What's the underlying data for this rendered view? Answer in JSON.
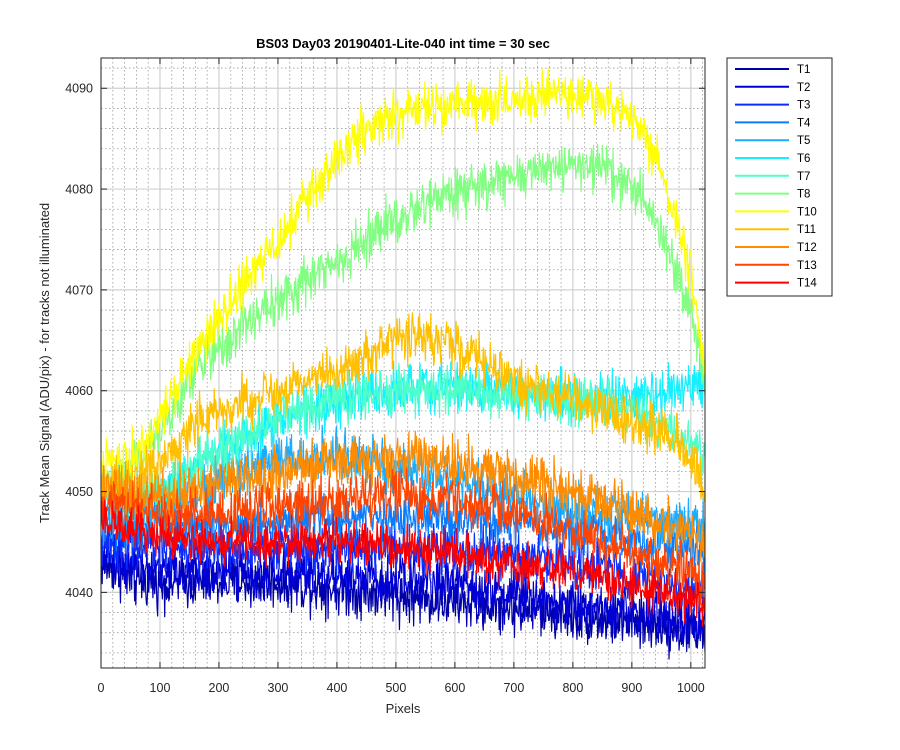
{
  "chart_data": {
    "type": "line",
    "title": "BS03 Day03 20190401-Lite-040 int time = 30 sec",
    "xlabel": "Pixels",
    "ylabel": "Track Mean Signal (ADU/pix) - for tracks not illuminated",
    "xlim": [
      0,
      1024
    ],
    "ylim": [
      4032.5,
      4093
    ],
    "xticks": [
      "0",
      "100",
      "200",
      "300",
      "400",
      "500",
      "600",
      "700",
      "800",
      "900",
      "1000"
    ],
    "yticks": [
      "4040",
      "4050",
      "4060",
      "4070",
      "4080",
      "4090"
    ],
    "grid": "major and minor",
    "legend_position": "outside-top-right",
    "series": [
      {
        "name": "T1",
        "color": "#0000a8",
        "noise": 1.8,
        "points": [
          [
            0,
            4043
          ],
          [
            60,
            4041
          ],
          [
            150,
            4041
          ],
          [
            300,
            4041
          ],
          [
            450,
            4040
          ],
          [
            600,
            4039
          ],
          [
            750,
            4038
          ],
          [
            900,
            4037
          ],
          [
            1024,
            4036
          ]
        ]
      },
      {
        "name": "T2",
        "color": "#0000d6",
        "noise": 1.8,
        "points": [
          [
            0,
            4044
          ],
          [
            60,
            4042.5
          ],
          [
            150,
            4042
          ],
          [
            300,
            4042
          ],
          [
            450,
            4041.5
          ],
          [
            600,
            4041
          ],
          [
            750,
            4039.5
          ],
          [
            900,
            4038
          ],
          [
            1024,
            4037
          ]
        ]
      },
      {
        "name": "T3",
        "color": "#0a2eff",
        "noise": 1.7,
        "points": [
          [
            0,
            4045
          ],
          [
            100,
            4044.5
          ],
          [
            300,
            4044.5
          ],
          [
            500,
            4044.5
          ],
          [
            650,
            4044
          ],
          [
            800,
            4043
          ],
          [
            950,
            4041
          ],
          [
            1024,
            4040
          ]
        ]
      },
      {
        "name": "T4",
        "color": "#0a7cff",
        "noise": 1.7,
        "points": [
          [
            0,
            4047
          ],
          [
            100,
            4046.5
          ],
          [
            300,
            4047
          ],
          [
            500,
            4047.5
          ],
          [
            650,
            4047
          ],
          [
            800,
            4046
          ],
          [
            950,
            4045
          ],
          [
            1024,
            4044
          ]
        ]
      },
      {
        "name": "T5",
        "color": "#1cacff",
        "noise": 1.8,
        "points": [
          [
            0,
            4047
          ],
          [
            80,
            4047.5
          ],
          [
            200,
            4051
          ],
          [
            300,
            4053
          ],
          [
            400,
            4053.5
          ],
          [
            500,
            4052
          ],
          [
            600,
            4051
          ],
          [
            700,
            4049.5
          ],
          [
            800,
            4048.5
          ],
          [
            900,
            4047.5
          ],
          [
            1024,
            4046.5
          ]
        ]
      },
      {
        "name": "T6",
        "color": "#14f0ff",
        "noise": 1.8,
        "points": [
          [
            0,
            4049
          ],
          [
            80,
            4049
          ],
          [
            200,
            4054
          ],
          [
            300,
            4057
          ],
          [
            400,
            4059
          ],
          [
            500,
            4060
          ],
          [
            600,
            4060.5
          ],
          [
            700,
            4060
          ],
          [
            800,
            4059.5
          ],
          [
            900,
            4059.5
          ],
          [
            1000,
            4060
          ],
          [
            1024,
            4061
          ]
        ]
      },
      {
        "name": "T7",
        "color": "#4dffc8",
        "noise": 1.6,
        "points": [
          [
            0,
            4049
          ],
          [
            100,
            4050
          ],
          [
            200,
            4054
          ],
          [
            300,
            4057.5
          ],
          [
            400,
            4059
          ],
          [
            500,
            4060
          ],
          [
            600,
            4060
          ],
          [
            700,
            4059.5
          ],
          [
            800,
            4059
          ],
          [
            900,
            4058
          ],
          [
            980,
            4056
          ],
          [
            1024,
            4053
          ]
        ]
      },
      {
        "name": "T8",
        "color": "#80ff80",
        "noise": 1.7,
        "points": [
          [
            0,
            4051
          ],
          [
            50,
            4052
          ],
          [
            100,
            4056
          ],
          [
            150,
            4061
          ],
          [
            200,
            4064.5
          ],
          [
            300,
            4069
          ],
          [
            400,
            4073
          ],
          [
            500,
            4077
          ],
          [
            550,
            4078.5
          ],
          [
            600,
            4079.5
          ],
          [
            700,
            4081
          ],
          [
            800,
            4082.5
          ],
          [
            850,
            4082
          ],
          [
            900,
            4080
          ],
          [
            950,
            4076
          ],
          [
            1000,
            4068
          ],
          [
            1024,
            4061
          ]
        ]
      },
      {
        "name": "T10",
        "color": "#ffff00",
        "noise": 1.7,
        "points": [
          [
            0,
            4053
          ],
          [
            50,
            4053.5
          ],
          [
            100,
            4057
          ],
          [
            150,
            4063
          ],
          [
            200,
            4067
          ],
          [
            250,
            4071
          ],
          [
            300,
            4075
          ],
          [
            350,
            4079
          ],
          [
            400,
            4083
          ],
          [
            450,
            4086
          ],
          [
            500,
            4087.5
          ],
          [
            600,
            4088.5
          ],
          [
            700,
            4089
          ],
          [
            800,
            4089.5
          ],
          [
            850,
            4089
          ],
          [
            900,
            4087
          ],
          [
            950,
            4082
          ],
          [
            1000,
            4072
          ],
          [
            1024,
            4062
          ]
        ]
      },
      {
        "name": "T11",
        "color": "#ffc000",
        "noise": 1.7,
        "points": [
          [
            0,
            4050.5
          ],
          [
            50,
            4050.5
          ],
          [
            100,
            4053
          ],
          [
            150,
            4056
          ],
          [
            200,
            4058
          ],
          [
            300,
            4060
          ],
          [
            400,
            4062
          ],
          [
            500,
            4065
          ],
          [
            550,
            4065.5
          ],
          [
            600,
            4064.5
          ],
          [
            700,
            4061
          ],
          [
            800,
            4059
          ],
          [
            900,
            4057
          ],
          [
            950,
            4056
          ],
          [
            1000,
            4053
          ],
          [
            1024,
            4050
          ]
        ]
      },
      {
        "name": "T12",
        "color": "#ff8c00",
        "noise": 1.8,
        "points": [
          [
            0,
            4050
          ],
          [
            100,
            4049.5
          ],
          [
            200,
            4051
          ],
          [
            300,
            4052
          ],
          [
            400,
            4053
          ],
          [
            500,
            4053.5
          ],
          [
            600,
            4053
          ],
          [
            700,
            4051.5
          ],
          [
            800,
            4050
          ],
          [
            900,
            4048
          ],
          [
            1000,
            4046
          ],
          [
            1024,
            4045
          ]
        ]
      },
      {
        "name": "T13",
        "color": "#ff4400",
        "noise": 1.6,
        "points": [
          [
            0,
            4049
          ],
          [
            100,
            4048
          ],
          [
            200,
            4048
          ],
          [
            300,
            4048.5
          ],
          [
            400,
            4049
          ],
          [
            500,
            4049.5
          ],
          [
            600,
            4049
          ],
          [
            700,
            4048
          ],
          [
            800,
            4046
          ],
          [
            900,
            4044
          ],
          [
            1000,
            4042
          ],
          [
            1024,
            4041
          ]
        ]
      },
      {
        "name": "T14",
        "color": "#ff0000",
        "noise": 1.5,
        "points": [
          [
            0,
            4047
          ],
          [
            100,
            4045.5
          ],
          [
            200,
            4045
          ],
          [
            300,
            4045
          ],
          [
            400,
            4045
          ],
          [
            500,
            4044.5
          ],
          [
            600,
            4044
          ],
          [
            700,
            4043
          ],
          [
            800,
            4042
          ],
          [
            900,
            4040.5
          ],
          [
            1000,
            4039.5
          ],
          [
            1024,
            4039
          ]
        ]
      }
    ]
  }
}
